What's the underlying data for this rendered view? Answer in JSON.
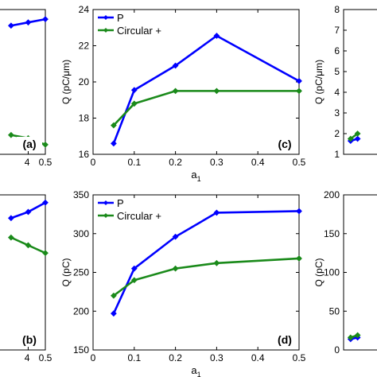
{
  "colors": {
    "blue": "#0000ff",
    "green": "#1a8a1a",
    "axis": "#000000"
  },
  "chart_data": [
    {
      "panel": "a",
      "type": "line",
      "partial": "left crop",
      "label": "(a)",
      "x": [
        0.3,
        0.4,
        0.5
      ],
      "xticks": [
        "4",
        "0.5"
      ],
      "series": [
        {
          "values": [
            24,
            24.2,
            24.4
          ],
          "color": "#0000ff"
        },
        {
          "values": [
            17.2,
            17.0,
            16.6
          ],
          "color": "#1a8a1a"
        }
      ],
      "xlim": [
        0.05,
        0.5
      ]
    },
    {
      "panel": "c",
      "type": "line",
      "label": "(c)",
      "xlabel": "a",
      "xlabel_sub": "1",
      "ylabel": "Q (pC/μm)",
      "xlim": [
        0,
        0.5
      ],
      "ylim": [
        16,
        24
      ],
      "xticks": [
        "0",
        "0.1",
        "0.2",
        "0.3",
        "0.4",
        "0.5"
      ],
      "yticks": [
        "16",
        "18",
        "20",
        "22",
        "24"
      ],
      "x": [
        0.05,
        0.1,
        0.2,
        0.3,
        0.5
      ],
      "series": [
        {
          "name": "P",
          "color": "#0000ff",
          "values": [
            16.6,
            19.55,
            20.9,
            22.55,
            20.05
          ]
        },
        {
          "name": "Circular +",
          "color": "#1a8a1a",
          "values": [
            17.6,
            18.8,
            19.5,
            19.5,
            19.5
          ]
        }
      ],
      "legend": "top-left"
    },
    {
      "panel": "e",
      "type": "line",
      "partial": "right crop",
      "ylabel": "Q (pC/μm)",
      "ylim": [
        1,
        8
      ],
      "yticks": [
        "1",
        "2",
        "3",
        "4",
        "5",
        "6",
        "7",
        "8"
      ],
      "x": [
        0.05,
        0.1
      ],
      "series": [
        {
          "color": "#0000ff",
          "values": [
            1.65,
            1.75
          ]
        },
        {
          "color": "#1a8a1a",
          "values": [
            1.75,
            2.0
          ]
        }
      ],
      "xlim": [
        0,
        0.5
      ]
    },
    {
      "panel": "b",
      "type": "line",
      "partial": "left crop",
      "label": "(b)",
      "x": [
        0.3,
        0.4,
        0.5
      ],
      "xticks": [
        "4",
        "0.5"
      ],
      "series": [
        {
          "values": [
            320,
            328,
            340
          ],
          "color": "#0000ff"
        },
        {
          "values": [
            295,
            285,
            275
          ],
          "color": "#1a8a1a"
        }
      ],
      "xlim": [
        0.05,
        0.5
      ]
    },
    {
      "panel": "d",
      "type": "line",
      "label": "(d)",
      "xlabel": "a",
      "xlabel_sub": "1",
      "ylabel": "Q (pC)",
      "xlim": [
        0,
        0.5
      ],
      "ylim": [
        150,
        350
      ],
      "xticks": [
        "0",
        "0.1",
        "0.2",
        "0.3",
        "0.4",
        "0.5"
      ],
      "yticks": [
        "150",
        "200",
        "250",
        "300",
        "350"
      ],
      "x": [
        0.05,
        0.1,
        0.2,
        0.3,
        0.5
      ],
      "series": [
        {
          "name": "P",
          "color": "#0000ff",
          "values": [
            197,
            255,
            296,
            327,
            329
          ]
        },
        {
          "name": "Circular +",
          "color": "#1a8a1a",
          "values": [
            220,
            240,
            255,
            262,
            268
          ]
        }
      ],
      "legend": "top-left"
    },
    {
      "panel": "f",
      "type": "line",
      "partial": "right crop",
      "ylabel": "Q (pC)",
      "ylim": [
        0,
        200
      ],
      "yticks": [
        "0",
        "50",
        "100",
        "150",
        "200"
      ],
      "x": [
        0.05,
        0.1
      ],
      "series": [
        {
          "color": "#0000ff",
          "values": [
            14,
            16
          ]
        },
        {
          "color": "#1a8a1a",
          "values": [
            16,
            19
          ]
        }
      ],
      "xlim": [
        0,
        0.5
      ]
    }
  ]
}
